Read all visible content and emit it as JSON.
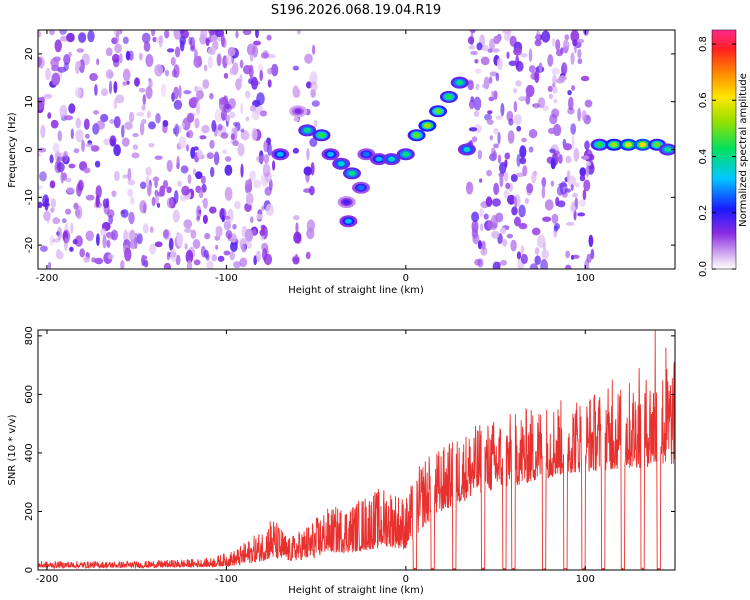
{
  "title": "S196.2026.068.19.04.R19",
  "colors": {
    "snr_line": "#e8312f",
    "frame": "#000000"
  },
  "chart_data": [
    {
      "type": "heatmap",
      "name": "spectrogram",
      "xlabel": "Height of straight line (km)",
      "ylabel": "Frequency (Hz)",
      "xlim": [
        -205,
        150
      ],
      "ylim": [
        -25,
        25
      ],
      "xticks": [
        -200,
        -100,
        0,
        100
      ],
      "xtick_labels": [
        "-200",
        "-100",
        "0",
        "100"
      ],
      "yticks": [
        -20,
        -10,
        0,
        10,
        20
      ],
      "ytick_labels": [
        "-20",
        "-10",
        "0",
        "10",
        "20"
      ],
      "colorbar": {
        "label": "Normalized spectral amplitude",
        "range": [
          0,
          0.85
        ],
        "ticks": [
          0.0,
          0.2,
          0.4,
          0.6,
          0.8
        ],
        "tick_labels": [
          "0.0",
          "0.2",
          "0.4",
          "0.6",
          "0.8"
        ]
      },
      "noise_regions": [
        [
          -205,
          -73
        ],
        [
          -62,
          -58
        ],
        [
          -55,
          -50
        ],
        [
          35,
          104
        ]
      ],
      "blank_regions": [
        [
          -73,
          -64
        ],
        [
          56,
          60
        ],
        [
          99,
          103
        ]
      ],
      "signal_track": [
        {
          "x": -70,
          "y": -1,
          "amp": 0.35
        },
        {
          "x": -60,
          "y": 8,
          "amp": 0.15
        },
        {
          "x": -55,
          "y": 4,
          "amp": 0.45
        },
        {
          "x": -47,
          "y": 3,
          "amp": 0.5
        },
        {
          "x": -42,
          "y": -1,
          "amp": 0.35
        },
        {
          "x": -36,
          "y": -3,
          "amp": 0.4
        },
        {
          "x": -30,
          "y": -5,
          "amp": 0.45
        },
        {
          "x": -25,
          "y": -8,
          "amp": 0.3
        },
        {
          "x": -22,
          "y": -1,
          "amp": 0.3
        },
        {
          "x": -15,
          "y": -2,
          "amp": 0.35
        },
        {
          "x": -8,
          "y": -2,
          "amp": 0.4
        },
        {
          "x": 0,
          "y": -1,
          "amp": 0.45
        },
        {
          "x": 6,
          "y": 3,
          "amp": 0.55
        },
        {
          "x": 12,
          "y": 5,
          "amp": 0.6
        },
        {
          "x": 18,
          "y": 8,
          "amp": 0.55
        },
        {
          "x": 24,
          "y": 11,
          "amp": 0.5
        },
        {
          "x": 30,
          "y": 14,
          "amp": 0.45
        },
        {
          "x": 34,
          "y": 0,
          "amp": 0.4
        },
        {
          "x": 108,
          "y": 1,
          "amp": 0.5
        },
        {
          "x": 116,
          "y": 1,
          "amp": 0.6
        },
        {
          "x": 124,
          "y": 1,
          "amp": 0.65
        },
        {
          "x": 132,
          "y": 1,
          "amp": 0.7
        },
        {
          "x": 140,
          "y": 1,
          "amp": 0.55
        },
        {
          "x": 146,
          "y": 0,
          "amp": 0.45
        },
        {
          "x": -32,
          "y": -15,
          "amp": 0.35
        },
        {
          "x": -33,
          "y": -11,
          "amp": 0.2
        }
      ]
    },
    {
      "type": "line",
      "name": "snr",
      "xlabel": "Height of straight line (km)",
      "ylabel": "SNR (10 * v/v)",
      "xlim": [
        -205,
        150
      ],
      "ylim": [
        0,
        820
      ],
      "xticks": [
        -200,
        -100,
        0,
        100
      ],
      "xtick_labels": [
        "-200",
        "-100",
        "0",
        "100"
      ],
      "yticks": [
        0,
        200,
        400,
        600,
        800
      ],
      "ytick_labels": [
        "0",
        "200",
        "400",
        "600",
        "800"
      ],
      "envelope": [
        {
          "x": -205,
          "base": 8,
          "peak": 30
        },
        {
          "x": -150,
          "base": 8,
          "peak": 30
        },
        {
          "x": -110,
          "base": 10,
          "peak": 40
        },
        {
          "x": -95,
          "base": 15,
          "peak": 70
        },
        {
          "x": -80,
          "base": 30,
          "peak": 140
        },
        {
          "x": -75,
          "base": 40,
          "peak": 190
        },
        {
          "x": -65,
          "base": 30,
          "peak": 110
        },
        {
          "x": -50,
          "base": 40,
          "peak": 180
        },
        {
          "x": -45,
          "base": 60,
          "peak": 210
        },
        {
          "x": -30,
          "base": 60,
          "peak": 230
        },
        {
          "x": -20,
          "base": 70,
          "peak": 270
        },
        {
          "x": -10,
          "base": 80,
          "peak": 290
        },
        {
          "x": 0,
          "base": 70,
          "peak": 250
        },
        {
          "x": 10,
          "base": 150,
          "peak": 390
        },
        {
          "x": 20,
          "base": 200,
          "peak": 420
        },
        {
          "x": 30,
          "base": 230,
          "peak": 460
        },
        {
          "x": 40,
          "base": 260,
          "peak": 500
        },
        {
          "x": 55,
          "base": 280,
          "peak": 530
        },
        {
          "x": 70,
          "base": 300,
          "peak": 560
        },
        {
          "x": 90,
          "base": 330,
          "peak": 590
        },
        {
          "x": 110,
          "base": 340,
          "peak": 620
        },
        {
          "x": 130,
          "base": 350,
          "peak": 660
        },
        {
          "x": 150,
          "base": 360,
          "peak": 720
        }
      ],
      "dropouts": [
        [
          4,
          6
        ],
        [
          14,
          16
        ],
        [
          26,
          28
        ],
        [
          42,
          44
        ],
        [
          54,
          56
        ],
        [
          59,
          61
        ],
        [
          76,
          78
        ],
        [
          88,
          90
        ],
        [
          98,
          100
        ],
        [
          109,
          111
        ],
        [
          120,
          122
        ],
        [
          131,
          133
        ],
        [
          140,
          142
        ]
      ],
      "spikes": [
        {
          "x": 139,
          "y": 820
        },
        {
          "x": 145,
          "y": 760
        },
        {
          "x": 130,
          "y": 690
        },
        {
          "x": 115,
          "y": 650
        }
      ]
    }
  ]
}
